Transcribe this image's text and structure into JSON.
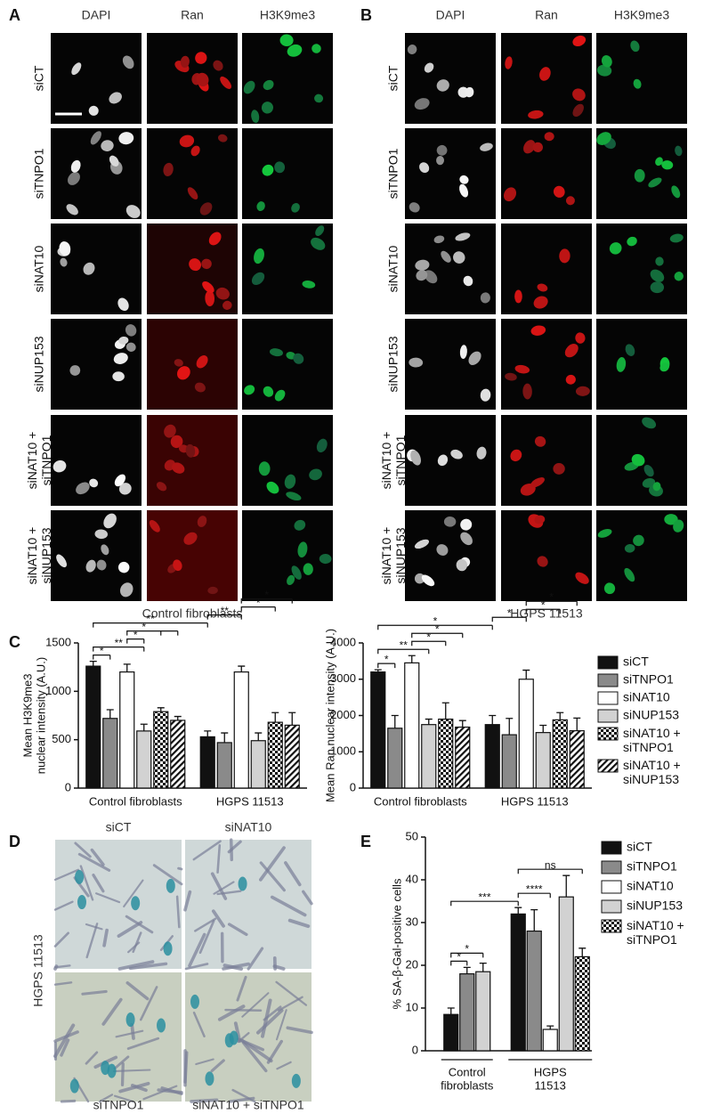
{
  "panel_a": {
    "label": "A",
    "columns": [
      "DAPI",
      "Ran",
      "H3K9me3"
    ],
    "rows": [
      "siCT",
      "siTNPO1",
      "siNAT10",
      "siNUP153",
      "siNAT10 +\nsiTNPO1",
      "siNAT10 +\nsiNUP153"
    ],
    "caption": "Control fibroblasts"
  },
  "panel_b": {
    "label": "B",
    "columns": [
      "DAPI",
      "Ran",
      "H3K9me3"
    ],
    "rows": [
      "siCT",
      "siTNPO1",
      "siNAT10",
      "siNUP153",
      "siNAT10 +\nsiTNPO1",
      "siNAT10 +\nsiNUP153"
    ],
    "caption": "HGPS 11513"
  },
  "panel_c": {
    "label": "C"
  },
  "panel_d": {
    "label": "D",
    "titles": [
      "siCT",
      "siNAT10",
      "siTNPO1",
      "siNAT10 + siTNPO1"
    ],
    "side_label": "HGPS 11513"
  },
  "panel_e": {
    "label": "E"
  },
  "chart_data": [
    {
      "type": "bar",
      "ylabel": "Mean H3K9me3\nnuclear intensity (A.U.)",
      "categories": [
        "Control  fibroblasts",
        "HGPS 11513"
      ],
      "ylim": [
        0,
        1500
      ],
      "yticks": [
        0,
        500,
        1000,
        1500
      ],
      "series": [
        {
          "color": "#111111",
          "pattern": "solid",
          "values": [
            1260,
            530
          ],
          "errors": [
            50,
            60
          ]
        },
        {
          "color": "#8a8a8a",
          "pattern": "solid",
          "values": [
            720,
            470
          ],
          "errors": [
            90,
            100
          ]
        },
        {
          "color": "#ffffff",
          "pattern": "solid",
          "values": [
            1200,
            1200
          ],
          "errors": [
            80,
            60
          ]
        },
        {
          "color": "#d2d2d2",
          "pattern": "solid",
          "values": [
            590,
            490
          ],
          "errors": [
            70,
            80
          ]
        },
        {
          "color": "#111111",
          "pattern": "checker",
          "values": [
            790,
            680
          ],
          "errors": [
            40,
            100
          ]
        },
        {
          "color": "#111111",
          "pattern": "hatch",
          "values": [
            700,
            650
          ],
          "errors": [
            40,
            130
          ]
        }
      ],
      "significance": [
        {
          "from": 0,
          "to": [
            1
          ],
          "label": "*"
        },
        {
          "from": 0,
          "to": [
            3
          ],
          "label": "**"
        },
        {
          "from": 2,
          "to": [
            3
          ],
          "label": "*"
        },
        {
          "from": 2,
          "to": [
            4,
            5
          ],
          "label": "*"
        },
        {
          "from": 0,
          "to": [
            6
          ],
          "label": "**"
        },
        {
          "from": 6,
          "to": [
            8
          ],
          "label": "**"
        },
        {
          "from": 8,
          "to": [
            10
          ],
          "label": "*"
        },
        {
          "from": 8,
          "to": [
            11
          ],
          "label": "*"
        }
      ]
    },
    {
      "type": "bar",
      "ylabel": "Mean Ran nuclear intensity (A.U.)",
      "categories": [
        "Control  fibroblasts",
        "HGPS 11513"
      ],
      "ylim": [
        0,
        4000
      ],
      "yticks": [
        0,
        1000,
        2000,
        3000,
        4000
      ],
      "legend": "outside-right",
      "series": [
        {
          "name": "siCT",
          "color": "#111111",
          "pattern": "solid",
          "values": [
            3200,
            1750
          ],
          "errors": [
            60,
            250
          ]
        },
        {
          "name": "siTNPO1",
          "color": "#8a8a8a",
          "pattern": "solid",
          "values": [
            1650,
            1470
          ],
          "errors": [
            350,
            450
          ]
        },
        {
          "name": "siNAT10",
          "color": "#ffffff",
          "pattern": "solid",
          "values": [
            3450,
            3000
          ],
          "errors": [
            200,
            250
          ]
        },
        {
          "name": "siNUP153",
          "color": "#d2d2d2",
          "pattern": "solid",
          "values": [
            1750,
            1530
          ],
          "errors": [
            150,
            200
          ]
        },
        {
          "name": "siNAT10 +\nsiTNPO1",
          "color": "#111111",
          "pattern": "checker",
          "values": [
            1900,
            1880
          ],
          "errors": [
            450,
            200
          ]
        },
        {
          "name": "siNAT10 +\nsiNUP153",
          "color": "#111111",
          "pattern": "hatch",
          "values": [
            1680,
            1580
          ],
          "errors": [
            180,
            350
          ]
        }
      ],
      "significance": [
        {
          "from": 0,
          "to": [
            1
          ],
          "label": "*"
        },
        {
          "from": 0,
          "to": [
            3
          ],
          "label": "**"
        },
        {
          "from": 2,
          "to": [
            4
          ],
          "label": "*"
        },
        {
          "from": 2,
          "to": [
            5
          ],
          "label": "*"
        },
        {
          "from": 0,
          "to": [
            6
          ],
          "label": "*"
        },
        {
          "from": 6,
          "to": [
            8
          ],
          "label": "*"
        },
        {
          "from": 8,
          "to": [
            10
          ],
          "label": "*"
        },
        {
          "from": 8,
          "to": [
            11
          ],
          "label": "*"
        }
      ]
    },
    {
      "type": "bar",
      "ylabel": "% SA-β-Gal-positive cells",
      "categories": [
        "Control\nfibroblasts",
        "HGPS\n11513"
      ],
      "group_lines": true,
      "ylim": [
        0,
        50
      ],
      "yticks": [
        0,
        10,
        20,
        30,
        40,
        50
      ],
      "legend": "outside-right",
      "series": [
        {
          "name": "siCT",
          "color": "#111111",
          "pattern": "solid",
          "values": [
            8.5,
            32
          ],
          "errors": [
            1.5,
            1.5
          ]
        },
        {
          "name": "siTNPO1",
          "color": "#8a8a8a",
          "pattern": "solid",
          "values": [
            18,
            28
          ],
          "errors": [
            1.5,
            5
          ]
        },
        {
          "name": "siNAT10",
          "color": "#ffffff",
          "pattern": "solid",
          "values": [
            null,
            5
          ],
          "errors": [
            null,
            0.8
          ]
        },
        {
          "name": "siNUP153",
          "color": "#d2d2d2",
          "pattern": "solid",
          "values": [
            18.5,
            36
          ],
          "errors": [
            2,
            5
          ]
        },
        {
          "name": "siNAT10 +\nsiTNPO1",
          "color": "#111111",
          "pattern": "checker",
          "values": [
            null,
            22
          ],
          "errors": [
            null,
            2
          ]
        }
      ],
      "significance": [
        {
          "from": 0,
          "to": [
            1
          ],
          "label": "*"
        },
        {
          "from": 0,
          "to": [
            3
          ],
          "label": "*"
        },
        {
          "from": 0,
          "to": [
            5
          ],
          "label": "***"
        },
        {
          "from": 5,
          "to": [
            7
          ],
          "label": "****"
        },
        {
          "from": 5,
          "to": [
            9
          ],
          "label": "ns"
        }
      ]
    }
  ]
}
